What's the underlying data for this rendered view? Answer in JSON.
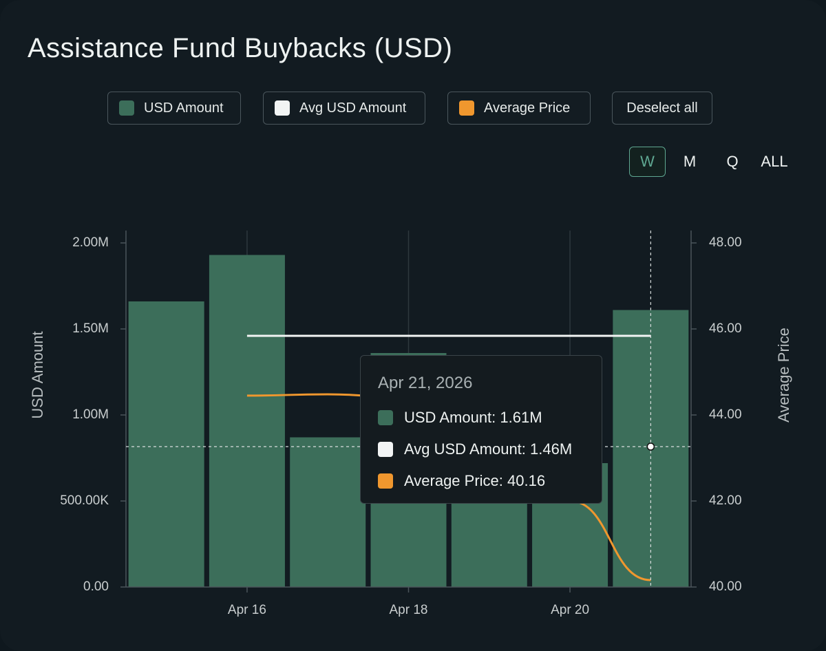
{
  "title": "Assistance Fund Buybacks (USD)",
  "legend": [
    {
      "label": "USD Amount",
      "color": "#3c6e5a"
    },
    {
      "label": "Avg USD Amount",
      "color": "#f2f4f4"
    },
    {
      "label": "Average Price",
      "color": "#f0972e"
    }
  ],
  "deselect_label": "Deselect all",
  "ranges": [
    "W",
    "M",
    "Q",
    "ALL"
  ],
  "active_range": "W",
  "tooltip": {
    "date": "Apr 21, 2026",
    "rows": [
      "USD Amount: 1.61M",
      "Avg USD Amount: 1.46M",
      "Average Price: 40.16"
    ]
  },
  "chart_data": {
    "type": "bar",
    "categories": [
      "Apr 15",
      "Apr 16",
      "Apr 17",
      "Apr 18",
      "Apr 19",
      "Apr 20",
      "Apr 21"
    ],
    "x_tick_labels": [
      "Apr 16",
      "Apr 18",
      "Apr 20"
    ],
    "series": [
      {
        "name": "USD Amount",
        "type": "bar",
        "axis": "left",
        "values": [
          1660000,
          1930000,
          870000,
          1360000,
          980000,
          720000,
          1610000
        ]
      },
      {
        "name": "Avg USD Amount",
        "type": "line",
        "axis": "left",
        "values": [
          null,
          1460000,
          1460000,
          1460000,
          1460000,
          1460000,
          1460000
        ]
      },
      {
        "name": "Average Price",
        "type": "line",
        "axis": "right",
        "values": [
          null,
          44.45,
          44.48,
          44.4,
          43.7,
          42.0,
          40.16
        ]
      }
    ],
    "ylabel": "USD Amount",
    "y2label": "Average Price",
    "ylim": [
      0,
      2000000
    ],
    "y2lim": [
      40,
      48
    ],
    "y_ticks": [
      "0.00",
      "500.00K",
      "1.00M",
      "1.50M",
      "2.00M"
    ],
    "y2_ticks": [
      "40.00",
      "42.00",
      "44.00",
      "46.00",
      "48.00"
    ],
    "grid": "vertical",
    "hover_category": "Apr 21"
  }
}
